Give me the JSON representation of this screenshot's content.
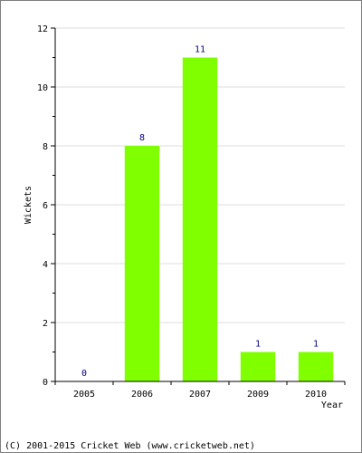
{
  "chart_data": {
    "type": "bar",
    "categories": [
      "2005",
      "2006",
      "2007",
      "2009",
      "2010"
    ],
    "values": [
      0,
      8,
      11,
      1,
      1
    ],
    "data_labels": [
      "0",
      "8",
      "11",
      "1",
      "1"
    ],
    "ylabel": "Wickets",
    "xlabel": "Year",
    "ylim": [
      0,
      12
    ],
    "yticks": [
      "0",
      "2",
      "4",
      "6",
      "8",
      "10",
      "12"
    ],
    "grid": true,
    "bar_color": "#80ff00",
    "label_color": "#000080",
    "legend": "none"
  },
  "footer": {
    "copyright": "(C) 2001-2015 Cricket Web (www.cricketweb.net)"
  }
}
